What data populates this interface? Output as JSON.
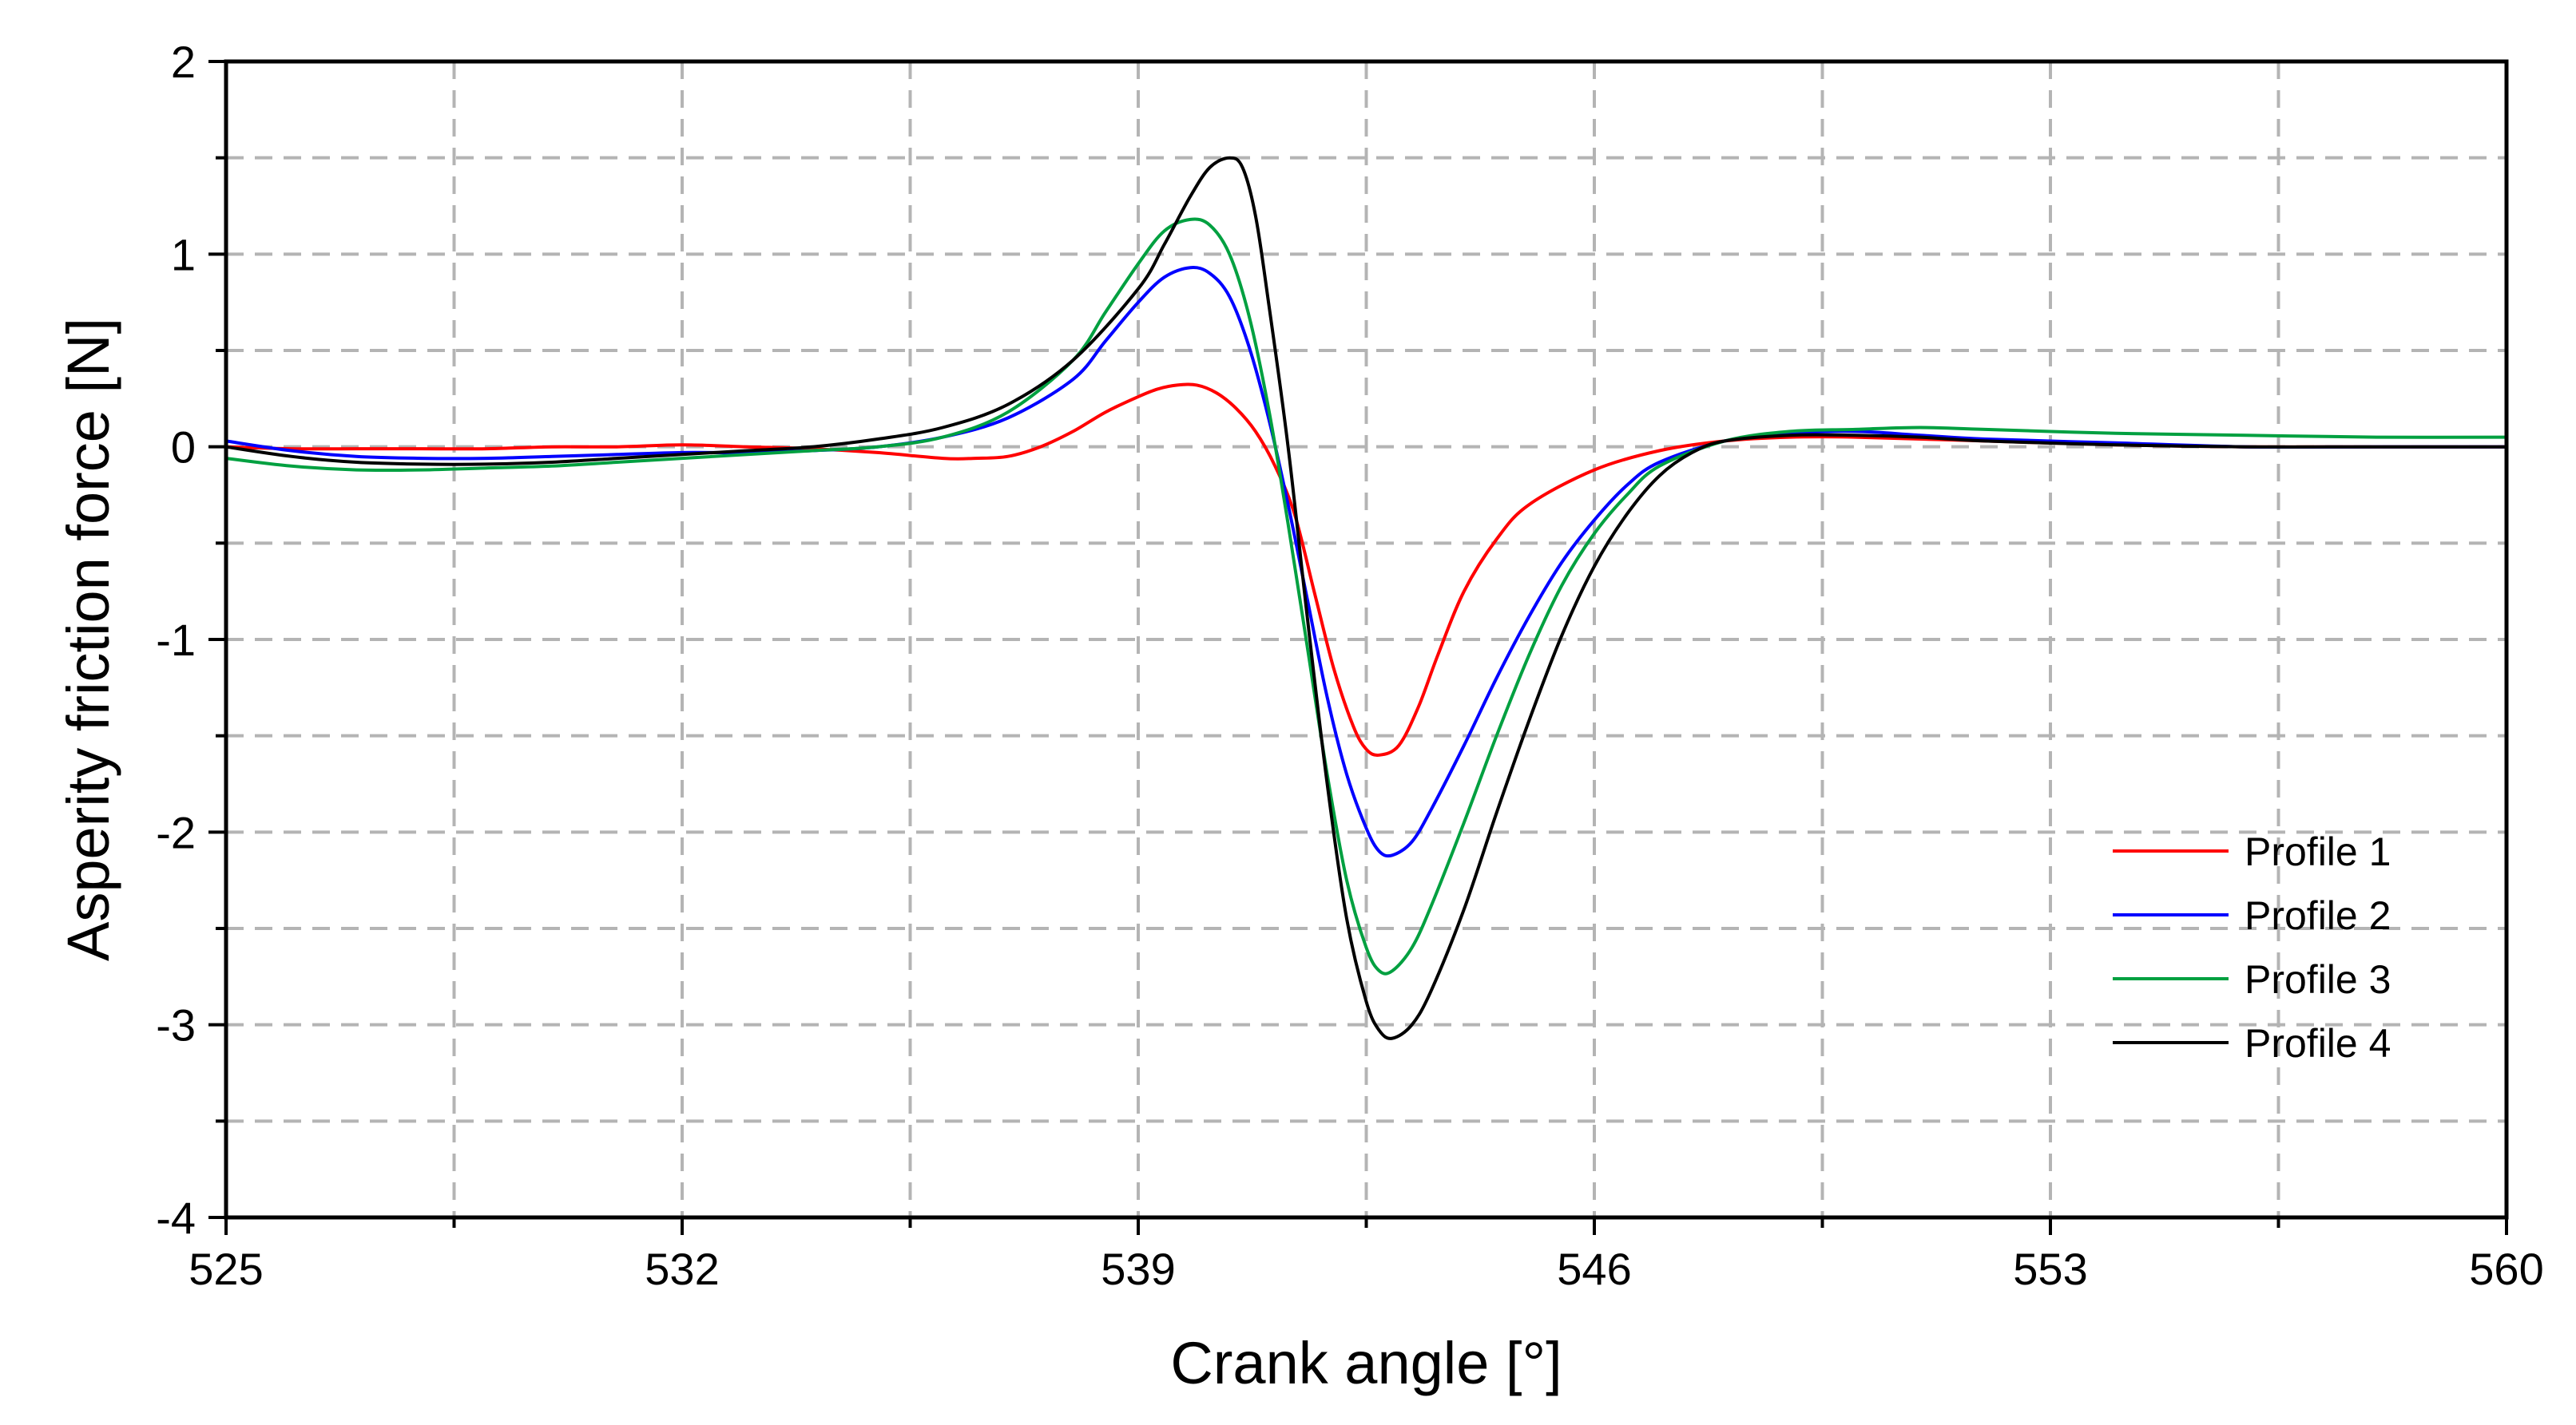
{
  "chart_data": {
    "type": "line",
    "xlabel": "Crank angle [°]",
    "ylabel": "Asperity friction force [N]",
    "xlim": [
      525,
      560
    ],
    "ylim": [
      -4,
      2
    ],
    "x_ticks": [
      525,
      532,
      539,
      546,
      553,
      560
    ],
    "x_tick_labels": [
      "525",
      "532",
      "539",
      "546",
      "553",
      "560"
    ],
    "x_minor_ticks": [
      528.5,
      535.5,
      542.5,
      549.5,
      556.5
    ],
    "y_ticks": [
      -4,
      -3,
      -2,
      -1,
      0,
      1,
      2
    ],
    "y_tick_labels": [
      "-4",
      "-3",
      "-2",
      "-1",
      "0",
      "1",
      "2"
    ],
    "y_minor_ticks": [
      -3.5,
      -2.5,
      -1.5,
      -0.5,
      0.5,
      1.5
    ],
    "grid": true,
    "legend_position": "bottom-right",
    "series": [
      {
        "name": "Profile 1",
        "color": "#ff0000",
        "x": [
          525,
          526,
          527,
          528,
          529,
          530,
          531,
          532,
          533,
          534,
          535,
          536,
          536.5,
          537,
          537.5,
          538,
          538.5,
          539,
          539.3,
          539.6,
          539.9,
          540.2,
          540.5,
          540.8,
          541.1,
          541.4,
          541.7,
          542,
          542.3,
          542.5,
          542.7,
          543,
          543.3,
          543.6,
          544,
          544.5,
          545,
          546,
          547,
          548,
          549,
          550,
          552,
          554,
          556,
          558,
          560
        ],
        "y": [
          0.0,
          -0.01,
          -0.01,
          -0.01,
          -0.01,
          0.0,
          0.0,
          0.01,
          0.0,
          -0.01,
          -0.03,
          -0.06,
          -0.06,
          -0.05,
          0.0,
          0.08,
          0.18,
          0.26,
          0.3,
          0.32,
          0.32,
          0.28,
          0.2,
          0.08,
          -0.1,
          -0.35,
          -0.75,
          -1.15,
          -1.45,
          -1.57,
          -1.6,
          -1.55,
          -1.35,
          -1.08,
          -0.75,
          -0.48,
          -0.3,
          -0.12,
          -0.02,
          0.03,
          0.05,
          0.05,
          0.03,
          0.01,
          0.0,
          0.0,
          0.0
        ]
      },
      {
        "name": "Profile 2",
        "color": "#0000ff",
        "x": [
          525,
          526,
          527,
          528,
          529,
          530,
          531,
          532,
          533,
          534,
          535,
          536,
          537,
          538,
          538.5,
          539,
          539.4,
          539.8,
          540.1,
          540.4,
          540.7,
          541,
          541.3,
          541.6,
          541.9,
          542.2,
          542.5,
          542.7,
          542.9,
          543.2,
          543.5,
          544,
          544.5,
          545,
          545.5,
          546,
          546.5,
          547,
          548,
          549,
          550,
          551,
          552,
          554,
          556,
          558,
          560
        ],
        "y": [
          0.03,
          -0.02,
          -0.05,
          -0.06,
          -0.06,
          -0.05,
          -0.04,
          -0.03,
          -0.03,
          -0.02,
          0.0,
          0.05,
          0.15,
          0.35,
          0.55,
          0.75,
          0.88,
          0.93,
          0.9,
          0.78,
          0.52,
          0.15,
          -0.3,
          -0.8,
          -1.3,
          -1.7,
          -1.98,
          -2.1,
          -2.12,
          -2.05,
          -1.88,
          -1.55,
          -1.2,
          -0.88,
          -0.6,
          -0.38,
          -0.2,
          -0.08,
          0.03,
          0.07,
          0.08,
          0.06,
          0.04,
          0.02,
          0.0,
          0.0,
          0.0
        ]
      },
      {
        "name": "Profile 3",
        "color": "#00a040",
        "x": [
          525,
          526,
          527,
          528,
          529,
          530,
          531,
          532,
          533,
          534,
          535,
          536,
          537,
          538,
          538.5,
          539,
          539.4,
          539.8,
          540.1,
          540.4,
          540.7,
          541,
          541.3,
          541.6,
          541.9,
          542.2,
          542.5,
          542.7,
          542.9,
          543.2,
          543.5,
          544,
          544.5,
          545,
          545.5,
          546,
          546.5,
          547,
          548,
          549,
          550,
          551,
          552,
          554,
          556,
          558,
          560
        ],
        "y": [
          -0.06,
          -0.1,
          -0.12,
          -0.12,
          -0.11,
          -0.1,
          -0.08,
          -0.06,
          -0.04,
          -0.02,
          0.0,
          0.05,
          0.18,
          0.45,
          0.7,
          0.95,
          1.12,
          1.18,
          1.15,
          1.0,
          0.68,
          0.2,
          -0.4,
          -1.05,
          -1.7,
          -2.25,
          -2.6,
          -2.72,
          -2.72,
          -2.6,
          -2.38,
          -1.95,
          -1.5,
          -1.08,
          -0.72,
          -0.45,
          -0.25,
          -0.1,
          0.03,
          0.08,
          0.09,
          0.1,
          0.09,
          0.07,
          0.06,
          0.05,
          0.05
        ]
      },
      {
        "name": "Profile 4",
        "color": "#000000",
        "x": [
          525,
          526,
          527,
          528,
          529,
          530,
          531,
          532,
          533,
          534,
          535,
          536,
          537,
          538,
          539,
          539.4,
          539.8,
          540.1,
          540.4,
          540.6,
          540.8,
          541,
          541.3,
          541.6,
          541.9,
          542.2,
          542.5,
          542.7,
          542.9,
          543.2,
          543.5,
          544,
          544.5,
          545,
          545.5,
          546,
          546.5,
          547,
          547.5,
          548,
          549,
          550,
          551,
          552,
          554,
          556,
          558,
          560
        ],
        "y": [
          0.0,
          -0.05,
          -0.08,
          -0.09,
          -0.09,
          -0.08,
          -0.06,
          -0.04,
          -0.02,
          0.0,
          0.04,
          0.1,
          0.22,
          0.45,
          0.82,
          1.05,
          1.3,
          1.45,
          1.5,
          1.45,
          1.2,
          0.75,
          0.0,
          -0.9,
          -1.75,
          -2.45,
          -2.88,
          -3.03,
          -3.07,
          -3.0,
          -2.82,
          -2.4,
          -1.9,
          -1.42,
          -0.98,
          -0.62,
          -0.35,
          -0.15,
          -0.03,
          0.03,
          0.06,
          0.06,
          0.05,
          0.03,
          0.01,
          0.0,
          0.0,
          0.0
        ]
      }
    ]
  }
}
